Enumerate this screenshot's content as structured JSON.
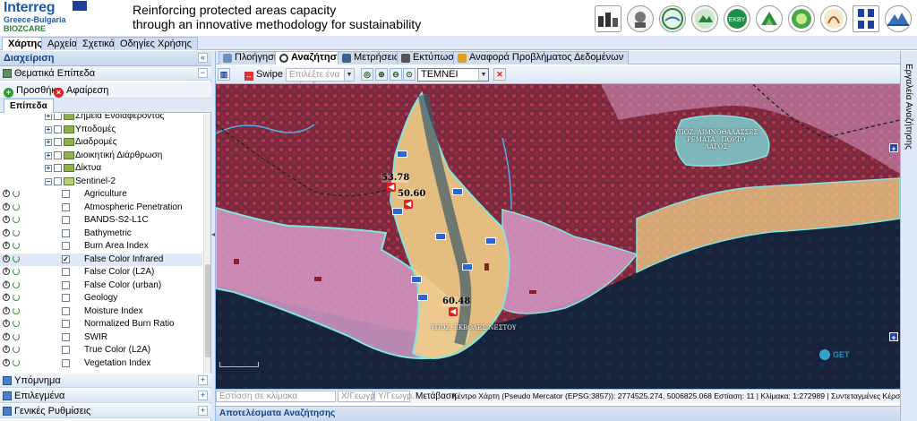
{
  "header": {
    "logo_interreg": "Interreg",
    "logo_program": "Greece-Bulgaria",
    "logo_project": "BIOZCARE",
    "title_line1": "Reinforcing protected areas capacity",
    "title_line2": "through an innovative methodology for sustainability",
    "partner_logos": [
      "ems",
      "university",
      "lake",
      "park",
      "ekby",
      "teta",
      "green",
      "phoenix",
      "ministry",
      "dirkh"
    ]
  },
  "main_tabs": [
    "Χάρτης",
    "Αρχεία",
    "Σχετικά",
    "Οδηγίες Χρήσης"
  ],
  "left_panel": {
    "title": "Διαχείριση",
    "thematic_title": "Θεματικά Επίπεδα",
    "add_label": "Προσθήκη",
    "remove_label": "Αφαίρεση",
    "layers_tab": "Επίπεδα",
    "tree": [
      {
        "label": "Σημεία Ενδιαφέροντος",
        "level": 1,
        "type": "folder"
      },
      {
        "label": "Υποδομές",
        "level": 1,
        "type": "folder"
      },
      {
        "label": "Διαδρομές",
        "level": 1,
        "type": "folder"
      },
      {
        "label": "Διοικητική Διάρθρωση",
        "level": 1,
        "type": "folder"
      },
      {
        "label": "Δίκτυα",
        "level": 1,
        "type": "folder"
      },
      {
        "label": "Sentinel-2",
        "level": 1,
        "type": "folder-open"
      },
      {
        "label": "Agriculture",
        "level": 2,
        "checked": false
      },
      {
        "label": "Atmospheric Penetration",
        "level": 2,
        "checked": false
      },
      {
        "label": "BANDS-S2-L1C",
        "level": 2,
        "checked": false
      },
      {
        "label": "Bathymetric",
        "level": 2,
        "checked": false
      },
      {
        "label": "Burn Area Index",
        "level": 2,
        "checked": false
      },
      {
        "label": "False Color Infrared",
        "level": 2,
        "checked": true
      },
      {
        "label": "False Color (L2A)",
        "level": 2,
        "checked": false
      },
      {
        "label": "False Color (urban)",
        "level": 2,
        "checked": false
      },
      {
        "label": "Geology",
        "level": 2,
        "checked": false
      },
      {
        "label": "Moisture Index",
        "level": 2,
        "checked": false
      },
      {
        "label": "Normalized Burn Ratio",
        "level": 2,
        "checked": false
      },
      {
        "label": "SWIR",
        "level": 2,
        "checked": false
      },
      {
        "label": "True Color (L2A)",
        "level": 2,
        "checked": false
      },
      {
        "label": "Vegetation Index",
        "level": 2,
        "checked": false
      }
    ],
    "legend_title": "Υπόμνημα",
    "selected_title": "Επιλεγμένα",
    "settings_title": "Γενικές Ρυθμίσεις"
  },
  "tool_tabs": [
    "Πλοήγηση",
    "Αναζήτηση",
    "Μετρήσεις",
    "Εκτύπωση",
    "Αναφορά Προβλήματος Δεδομένων"
  ],
  "toolbar": {
    "swipe_label": "Swipe",
    "layer_select_placeholder": "Επιλέξτε ένα επίπεδο",
    "area_select_value": "ΤΕΜΝΕΙ"
  },
  "map": {
    "markers": [
      {
        "value": "53.78"
      },
      {
        "value": "50.60"
      },
      {
        "value": "60.48"
      }
    ],
    "zone_label_1a": "ΥΠΟΖ. ΛΙΜΝΟΘΑΛΑΣΣΕΣ",
    "zone_label_1b": "ΡΕΜΑΤΑ - ΠΟΡΤΟ",
    "zone_label_1c": "ΛΑΓΟΣ",
    "zone_label_2": "ΥΠΟΖ. ΕΚΒΟΛΕΣ ΝΕΣΤΟΥ",
    "credit": "GET"
  },
  "statusbar": {
    "zoom_placeholder": "Εστίαση σε κλίμακα",
    "x_placeholder": "Χ/Γεωγρ.",
    "y_placeholder": "Υ/Γεωγρ.",
    "transform_label": "Μετάβαση",
    "info": "Κέντρο Χάρτη (Pseudo Mercator (EPSG:3857)): 2774525.274, 5006825.068 Εστίαση: 11 | Κλίμακα: 1:272989 | Συντεταγμένες Κέρσορα (Pseudo Mercator"
  },
  "results_title": "Αποτελέσματα Αναζήτησης",
  "right_panel": {
    "title": "Εργαλεία Αναζήτησης"
  },
  "colors": {
    "panel_blue": "#99bbe8",
    "header_text": "#15428b",
    "zone_pink": "#d69ac8",
    "zone_yellow": "#f1d28a",
    "zone_cyan": "#7fe6e0"
  }
}
